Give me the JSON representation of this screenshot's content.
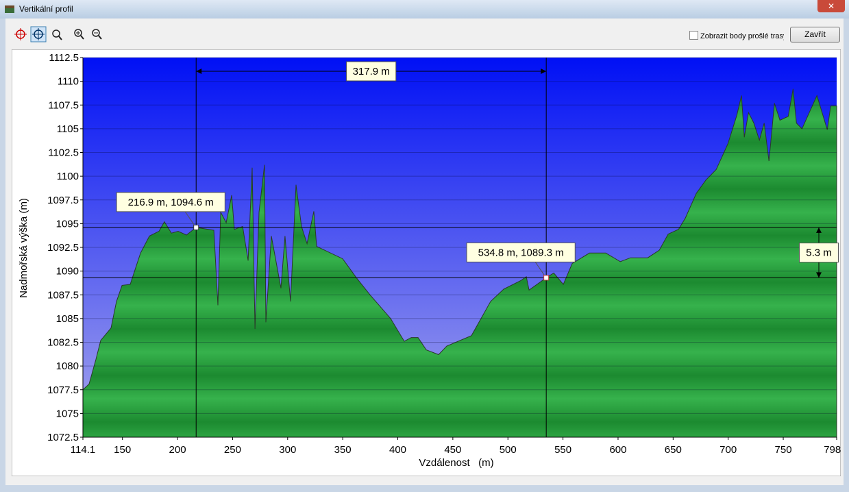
{
  "window": {
    "title": "Vertikální profil",
    "checkbox_label": "Zobrazit body prošlé trasy",
    "close_button": "Zavřít"
  },
  "chart_data": {
    "type": "area",
    "xlabel": "Vzdálenost   (m)",
    "ylabel": "Nadmořská výška (m)",
    "color": "#2aa03e",
    "x": [
      114.1,
      119.7,
      125.9,
      130.3,
      139.6,
      144.6,
      149.6,
      157.0,
      166.4,
      174.5,
      183.2,
      188.1,
      194.4,
      200.6,
      208.1,
      216.9,
      233.0,
      236.7,
      239.2,
      244.2,
      249.2,
      251.6,
      259.1,
      264.1,
      267.8,
      270.3,
      274.0,
      279.0,
      280.2,
      285.2,
      293.9,
      297.6,
      302.6,
      307.6,
      312.6,
      317.6,
      323.8,
      326.3,
      349.9,
      362.4,
      374.8,
      393.5,
      405.9,
      412.2,
      418.4,
      425.9,
      437.1,
      444.5,
      466.9,
      484.3,
      496.2,
      511.7,
      516.7,
      519.2,
      534.8,
      541.6,
      550.3,
      558.4,
      574.0,
      588.9,
      602.0,
      611.3,
      626.9,
      637.4,
      645.5,
      654.9,
      661.1,
      671.1,
      679.8,
      689.1,
      699.7,
      707.8,
      712.1,
      714.6,
      718.4,
      723.3,
      728.3,
      732.7,
      737.0,
      742.0,
      747.0,
      754.5,
      758.9,
      762.0,
      767.0,
      780.6,
      790.0,
      793.1,
      798.5
    ],
    "values": [
      1077.5,
      1078.1,
      1080.7,
      1082.7,
      1084.0,
      1086.8,
      1088.5,
      1088.6,
      1091.9,
      1093.7,
      1094.2,
      1095.2,
      1094.0,
      1094.2,
      1093.8,
      1094.6,
      1094.3,
      1086.4,
      1096.2,
      1095.1,
      1098.0,
      1094.4,
      1094.7,
      1091.1,
      1100.9,
      1083.9,
      1096.2,
      1101.2,
      1084.6,
      1093.7,
      1088.2,
      1093.7,
      1086.8,
      1099.1,
      1094.7,
      1092.9,
      1096.3,
      1092.6,
      1091.3,
      1089.3,
      1087.5,
      1085.0,
      1082.6,
      1083.0,
      1083.0,
      1081.7,
      1081.2,
      1082.1,
      1083.2,
      1086.8,
      1088.1,
      1089.0,
      1089.4,
      1088.0,
      1089.3,
      1089.8,
      1088.6,
      1090.8,
      1091.9,
      1091.9,
      1091.0,
      1091.4,
      1091.4,
      1092.2,
      1093.9,
      1094.4,
      1095.6,
      1098.2,
      1099.6,
      1100.7,
      1103.4,
      1106.4,
      1108.5,
      1104.1,
      1106.7,
      1105.6,
      1103.8,
      1105.6,
      1101.6,
      1107.7,
      1105.9,
      1106.3,
      1109.2,
      1105.6,
      1105.0,
      1108.5,
      1104.9,
      1107.4,
      1107.4
    ],
    "xlim": [
      114.1,
      798.5
    ],
    "xticks": [
      114.1,
      150,
      200,
      250,
      300,
      350,
      400,
      450,
      500,
      550,
      600,
      650,
      700,
      750,
      798.5
    ],
    "ylim": [
      1072.5,
      1112.5
    ],
    "yticks": [
      1072.5,
      1075,
      1077.5,
      1080,
      1082.5,
      1085,
      1087.5,
      1090,
      1092.5,
      1095,
      1097.5,
      1100,
      1102.5,
      1105,
      1107.5,
      1110,
      1112.5
    ],
    "grid": true,
    "markers": [
      {
        "x": 216.9,
        "y": 1094.6,
        "label": "216.9 m, 1094.6 m"
      },
      {
        "x": 534.8,
        "y": 1089.3,
        "label": "534.8 m, 1089.3 m"
      }
    ],
    "distance": {
      "value": 317.9,
      "label": "317.9 m"
    },
    "height_diff": {
      "value": 5.3,
      "label": "5.3 m"
    }
  }
}
